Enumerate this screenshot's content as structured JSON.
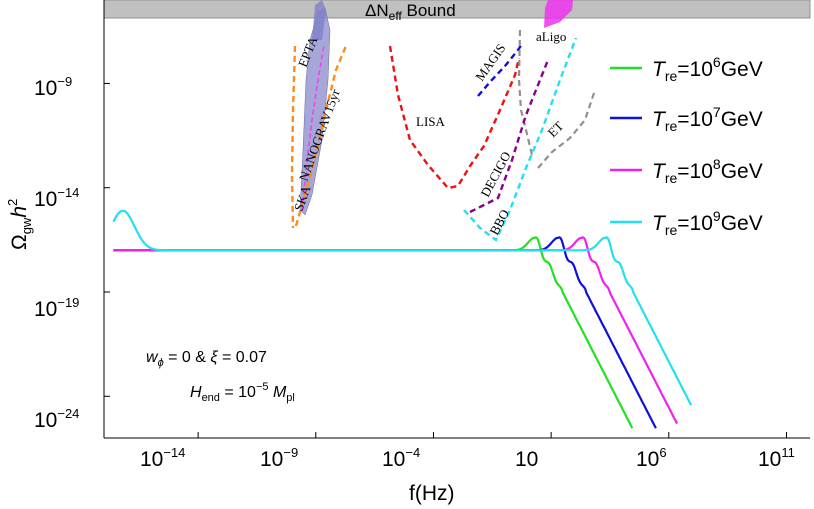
{
  "chart_data": {
    "type": "line",
    "xlabel": "f(Hz)",
    "ylabel": "Ω_gw h^2",
    "x_scale": "log10",
    "y_scale": "log10",
    "xlim": [
      1e-18,
      1000000000000.0
    ],
    "ylim": [
      1e-26,
      1e-05
    ],
    "x_ticks": [
      {
        "mant": "10",
        "exp": "−14"
      },
      {
        "mant": "10",
        "exp": "−9"
      },
      {
        "mant": "10",
        "exp": "−4"
      },
      {
        "mant": "10",
        "exp": ""
      },
      {
        "mant": "10",
        "exp": "6"
      },
      {
        "mant": "10",
        "exp": "11"
      }
    ],
    "y_ticks": [
      {
        "mant": "10",
        "exp": "−9"
      },
      {
        "mant": "10",
        "exp": "−14"
      },
      {
        "mant": "10",
        "exp": "−19"
      },
      {
        "mant": "10",
        "exp": "−24"
      }
    ],
    "bound": {
      "label_main": "ΔN",
      "label_sub": "eff",
      "label_rest": " Bound"
    },
    "legend_position": "right",
    "series": [
      {
        "name_prefix": "T",
        "name_sub": "re",
        "name_mid": "=10",
        "name_exp": "6",
        "name_suffix": "GeV",
        "color": "#22e022",
        "peak_log10_f": 0.3,
        "tail_end_log10_f": 4.5
      },
      {
        "name_prefix": "T",
        "name_sub": "re",
        "name_mid": "=10",
        "name_exp": "7",
        "name_suffix": "GeV",
        "color": "#1010dd",
        "peak_log10_f": 1.3,
        "tail_end_log10_f": 5.5
      },
      {
        "name_prefix": "T",
        "name_sub": "re",
        "name_mid": "=10",
        "name_exp": "8",
        "name_suffix": "GeV",
        "color": "#ee22ee",
        "peak_log10_f": 2.3,
        "tail_end_log10_f": 6.4
      },
      {
        "name_prefix": "T",
        "name_sub": "re",
        "name_mid": "=10",
        "name_exp": "9",
        "name_suffix": "GeV",
        "color": "#22e0ee",
        "peak_log10_f": 3.3,
        "tail_end_log10_f": 7.0
      }
    ],
    "annotations": {
      "line1": {
        "w": "w",
        "w_sub": "ϕ",
        "rest": " = 0  & ",
        "xi": "ξ",
        "xi_rest": " = 0.07"
      },
      "line2": {
        "h": "H",
        "h_sub": "end",
        "eq": " = 10",
        "exp": "−5",
        "m": " M",
        "m_sub": "pl"
      }
    },
    "experiments": [
      {
        "name": "EPTA"
      },
      {
        "name": "NANOGRAV15yr"
      },
      {
        "name": "SKA"
      },
      {
        "name": "LISA"
      },
      {
        "name": "MAGIS"
      },
      {
        "name": "aLigo"
      },
      {
        "name": "DECIGO"
      },
      {
        "name": "ET"
      },
      {
        "name": "BBO"
      }
    ]
  }
}
